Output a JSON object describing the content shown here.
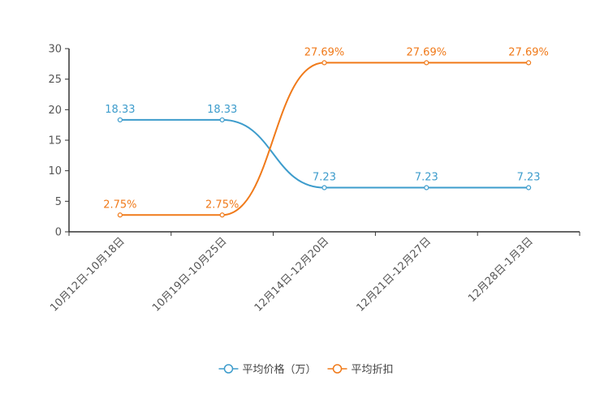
{
  "chart_data": {
    "type": "line",
    "title": "",
    "xlabel": "",
    "ylabel": "",
    "categories": [
      "10月12日-10月18日",
      "10月19日-10月25日",
      "12月14日-12月20日",
      "12月21日-12月27日",
      "12月28日-1月3日"
    ],
    "ylim": [
      0,
      30
    ],
    "yticks": [
      0,
      5,
      10,
      15,
      20,
      25,
      30
    ],
    "grid": false,
    "smooth": true,
    "legend_position": "bottom-center",
    "series": [
      {
        "name": "平均价格（万）",
        "color": "#3d9ccc",
        "values": [
          18.33,
          18.33,
          7.23,
          7.23,
          7.23
        ],
        "labels": [
          "18.33",
          "18.33",
          "7.23",
          "7.23",
          "7.23"
        ]
      },
      {
        "name": "平均折扣",
        "color": "#f07a1a",
        "values": [
          2.75,
          2.75,
          27.69,
          27.69,
          27.69
        ],
        "labels": [
          "2.75%",
          "2.75%",
          "27.69%",
          "27.69%",
          "27.69%"
        ]
      }
    ]
  }
}
